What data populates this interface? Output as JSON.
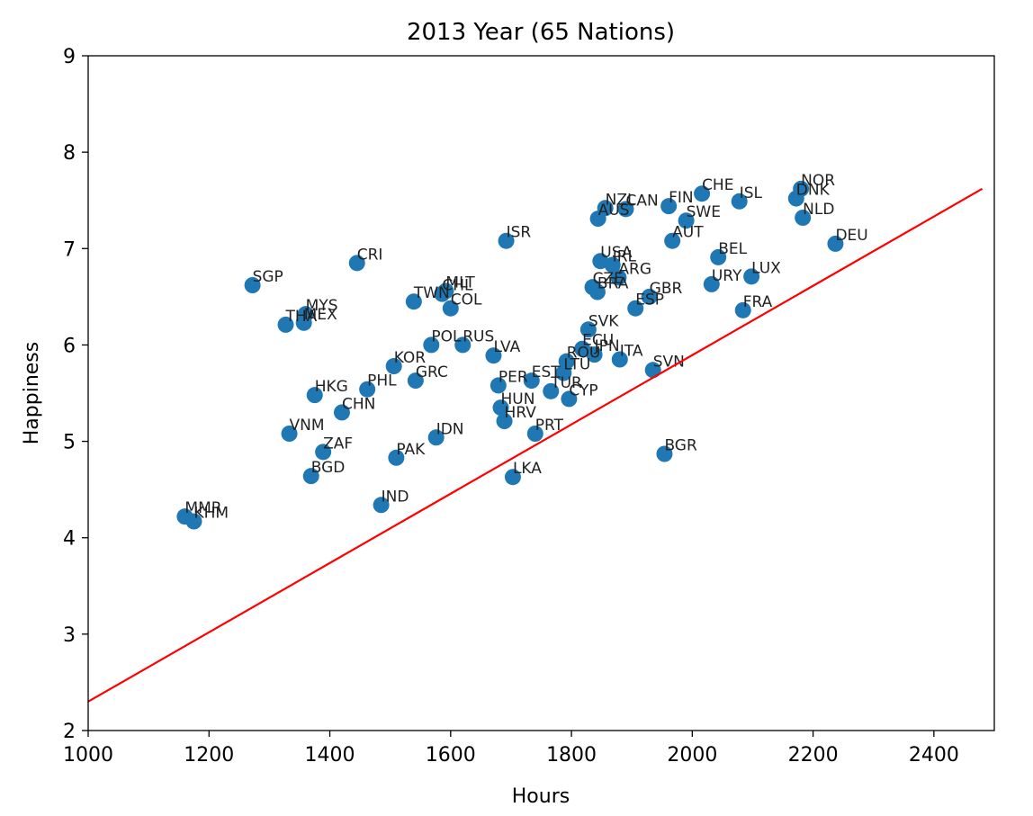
{
  "chart_data": {
    "type": "scatter",
    "title": "2013 Year (65 Nations)",
    "xlabel": "Hours",
    "ylabel": "Happiness",
    "xlim": [
      1000,
      2500
    ],
    "ylim": [
      2,
      9
    ],
    "xticks": [
      1000,
      1200,
      1400,
      1600,
      1800,
      2000,
      2200,
      2400
    ],
    "yticks": [
      2,
      3,
      4,
      5,
      6,
      7,
      8,
      9
    ],
    "grid": false,
    "marker_color": "#1f77b4",
    "line_color": "#ff0000",
    "regression_line": {
      "x": [
        1000,
        2480
      ],
      "y": [
        2.3,
        7.62
      ]
    },
    "points": [
      {
        "label": "MMR",
        "x": 1160,
        "y": 4.22
      },
      {
        "label": "KHM",
        "x": 1175,
        "y": 4.17
      },
      {
        "label": "SGP",
        "x": 1272,
        "y": 6.62
      },
      {
        "label": "THA",
        "x": 1327,
        "y": 6.21
      },
      {
        "label": "MYS",
        "x": 1360,
        "y": 6.32
      },
      {
        "label": "MEX",
        "x": 1357,
        "y": 6.23
      },
      {
        "label": "VNM",
        "x": 1333,
        "y": 5.08
      },
      {
        "label": "HKG",
        "x": 1375,
        "y": 5.48
      },
      {
        "label": "BGD",
        "x": 1369,
        "y": 4.64
      },
      {
        "label": "ZAF",
        "x": 1389,
        "y": 4.89
      },
      {
        "label": "CHN",
        "x": 1420,
        "y": 5.3
      },
      {
        "label": "CRI",
        "x": 1445,
        "y": 6.85
      },
      {
        "label": "PHL",
        "x": 1462,
        "y": 5.54
      },
      {
        "label": "IND",
        "x": 1485,
        "y": 4.34
      },
      {
        "label": "KOR",
        "x": 1506,
        "y": 5.78
      },
      {
        "label": "PAK",
        "x": 1510,
        "y": 4.83
      },
      {
        "label": "GRC",
        "x": 1542,
        "y": 5.63
      },
      {
        "label": "TWN",
        "x": 1539,
        "y": 6.45
      },
      {
        "label": "POL",
        "x": 1568,
        "y": 6.0
      },
      {
        "label": "IDN",
        "x": 1576,
        "y": 5.04
      },
      {
        "label": "CHL",
        "x": 1586,
        "y": 6.53
      },
      {
        "label": "MLT",
        "x": 1592,
        "y": 6.56
      },
      {
        "label": "COL",
        "x": 1600,
        "y": 6.38
      },
      {
        "label": "RUS",
        "x": 1620,
        "y": 6.0
      },
      {
        "label": "LVA",
        "x": 1671,
        "y": 5.89
      },
      {
        "label": "PER",
        "x": 1679,
        "y": 5.58
      },
      {
        "label": "HUN",
        "x": 1683,
        "y": 5.35
      },
      {
        "label": "HRV",
        "x": 1689,
        "y": 5.21
      },
      {
        "label": "ISR",
        "x": 1692,
        "y": 7.08
      },
      {
        "label": "LKA",
        "x": 1703,
        "y": 4.63
      },
      {
        "label": "EST",
        "x": 1734,
        "y": 5.63
      },
      {
        "label": "PRT",
        "x": 1740,
        "y": 5.08
      },
      {
        "label": "TUR",
        "x": 1766,
        "y": 5.52
      },
      {
        "label": "LTU",
        "x": 1787,
        "y": 5.71
      },
      {
        "label": "ROU",
        "x": 1792,
        "y": 5.83
      },
      {
        "label": "CYP",
        "x": 1796,
        "y": 5.44
      },
      {
        "label": "ECU",
        "x": 1818,
        "y": 5.96
      },
      {
        "label": "SVK",
        "x": 1828,
        "y": 6.16
      },
      {
        "label": "JPN",
        "x": 1838,
        "y": 5.9
      },
      {
        "label": "CZE",
        "x": 1835,
        "y": 6.6
      },
      {
        "label": "BRA",
        "x": 1843,
        "y": 6.55
      },
      {
        "label": "AUS",
        "x": 1844,
        "y": 7.31
      },
      {
        "label": "USA",
        "x": 1848,
        "y": 6.87
      },
      {
        "label": "NZL",
        "x": 1856,
        "y": 7.42
      },
      {
        "label": "IRL",
        "x": 1868,
        "y": 6.83
      },
      {
        "label": "ARG",
        "x": 1878,
        "y": 6.7
      },
      {
        "label": "ITA",
        "x": 1880,
        "y": 5.85
      },
      {
        "label": "CAN",
        "x": 1890,
        "y": 7.41
      },
      {
        "label": "ESP",
        "x": 1906,
        "y": 6.38
      },
      {
        "label": "GBR",
        "x": 1929,
        "y": 6.5
      },
      {
        "label": "SVN",
        "x": 1935,
        "y": 5.74
      },
      {
        "label": "BGR",
        "x": 1954,
        "y": 4.87
      },
      {
        "label": "FIN",
        "x": 1961,
        "y": 7.44
      },
      {
        "label": "AUT",
        "x": 1967,
        "y": 7.08
      },
      {
        "label": "SWE",
        "x": 1990,
        "y": 7.29
      },
      {
        "label": "CHE",
        "x": 2016,
        "y": 7.57
      },
      {
        "label": "URY",
        "x": 2032,
        "y": 6.63
      },
      {
        "label": "BEL",
        "x": 2043,
        "y": 6.91
      },
      {
        "label": "ISL",
        "x": 2078,
        "y": 7.49
      },
      {
        "label": "FRA",
        "x": 2084,
        "y": 6.36
      },
      {
        "label": "LUX",
        "x": 2098,
        "y": 6.71
      },
      {
        "label": "DNK",
        "x": 2172,
        "y": 7.52
      },
      {
        "label": "NOR",
        "x": 2180,
        "y": 7.62
      },
      {
        "label": "NLD",
        "x": 2183,
        "y": 7.32
      },
      {
        "label": "DEU",
        "x": 2237,
        "y": 7.05
      }
    ]
  }
}
